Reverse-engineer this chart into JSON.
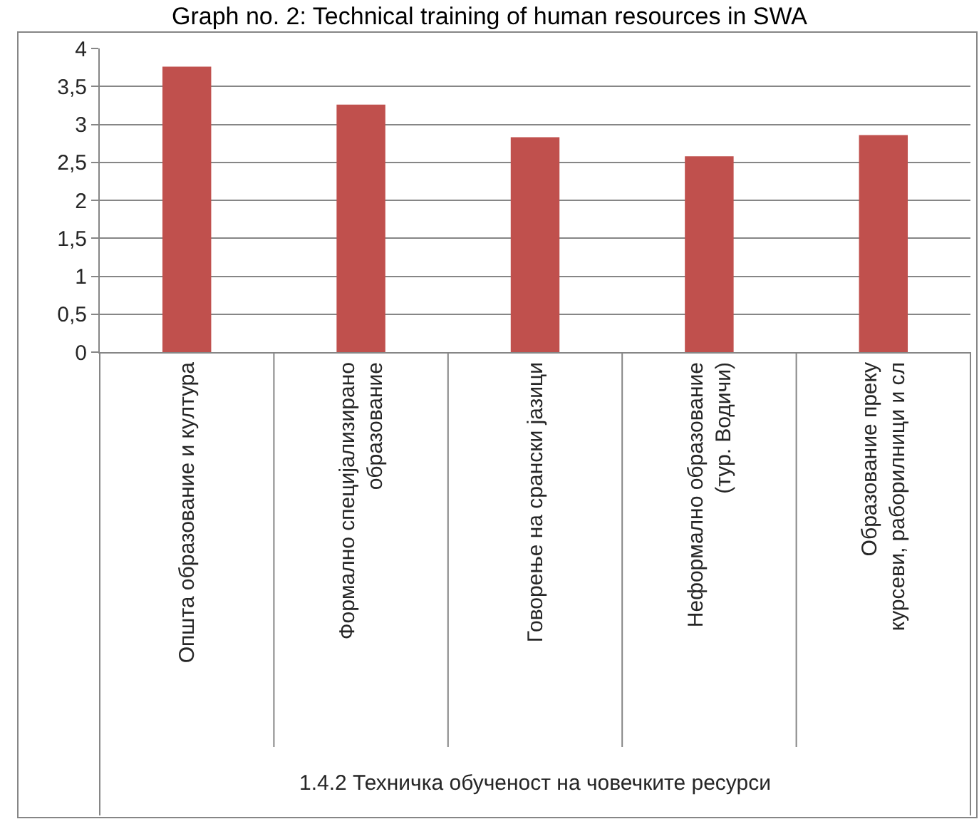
{
  "chart_data": {
    "type": "bar",
    "title": "Graph no. 2: Technical training of human resources in SWA",
    "categories": [
      "Општа образование и култура",
      "Формално специјализирано образование",
      "Говорење на срански јазици",
      "Неформално образование (тур. Водичи)",
      "Образование преку курсеви, раборилници и сл"
    ],
    "values": [
      3.76,
      3.26,
      2.83,
      2.58,
      2.86
    ],
    "color": "#c0504d",
    "ylim": [
      0,
      4
    ],
    "yticks": [
      0,
      {
        "value": 0.5,
        "label": "0,5"
      },
      1,
      {
        "value": 1.5,
        "label": "1,5"
      },
      2,
      {
        "value": 2.5,
        "label": "2,5"
      },
      3,
      {
        "value": 3.5,
        "label": "3,5"
      },
      4
    ],
    "grid": "y",
    "annotations": [
      "1.4.2 Техничка обученост на човечките ресурси"
    ]
  }
}
